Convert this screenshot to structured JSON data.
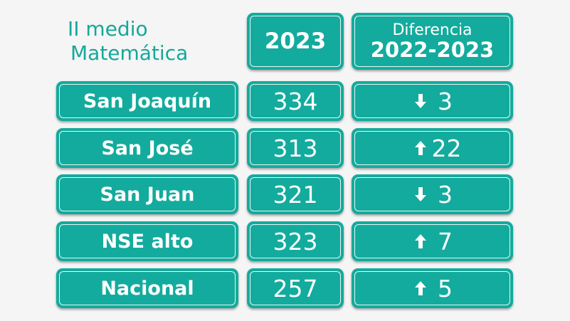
{
  "title": {
    "line1": "II medio",
    "line2": "Matemática"
  },
  "headers": {
    "year": "2023",
    "diff_line1": "Diferencia",
    "diff_line2": "2022-2023"
  },
  "rows": [
    {
      "label": "San Joaquín",
      "score": "334",
      "direction": "down",
      "diff": "3"
    },
    {
      "label": "San José",
      "score": "313",
      "direction": "up",
      "diff": "22"
    },
    {
      "label": "San Juan",
      "score": "321",
      "direction": "down",
      "diff": "3"
    },
    {
      "label": "NSE alto",
      "score": "323",
      "direction": "up",
      "diff": "7"
    },
    {
      "label": "Nacional",
      "score": "257",
      "direction": "up",
      "diff": "5"
    }
  ],
  "colors": {
    "accent": "#13ab9d",
    "title": "#15a89b",
    "background": "#f5f5f5",
    "text": "#ffffff"
  }
}
